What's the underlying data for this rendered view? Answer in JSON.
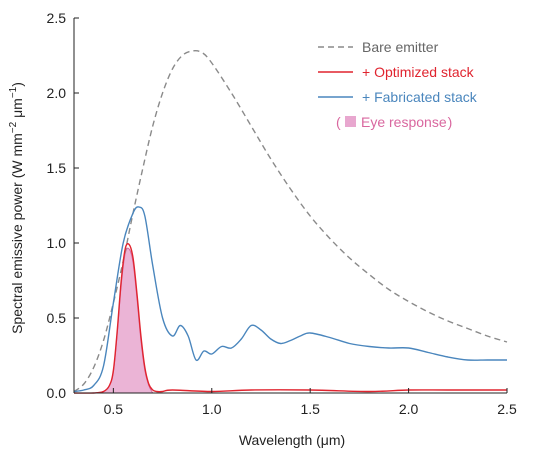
{
  "chart_data": {
    "type": "line",
    "xlabel": "Wavelength (μm)",
    "ylabel_parts": [
      "Spectral emissive power (W mm",
      "−2",
      " μm",
      "−1",
      ")"
    ],
    "xlim": [
      0.3,
      2.5
    ],
    "ylim": [
      0.0,
      2.5
    ],
    "x_ticks": [
      0.5,
      1.0,
      1.5,
      2.0,
      2.5
    ],
    "y_ticks": [
      0.0,
      0.5,
      1.0,
      1.5,
      2.0,
      2.5
    ],
    "x_tick_labels": [
      "0.5",
      "1.0",
      "1.5",
      "2.0",
      "2.5"
    ],
    "y_tick_labels": [
      "0.0",
      "0.5",
      "1.0",
      "1.5",
      "2.0",
      "2.5"
    ],
    "grid": false,
    "legend_position": "top-right",
    "series": [
      {
        "name": "Bare emitter",
        "style": "dashed",
        "color": "#8a8a8a",
        "x": [
          0.3,
          0.35,
          0.4,
          0.45,
          0.5,
          0.55,
          0.6,
          0.65,
          0.7,
          0.75,
          0.8,
          0.85,
          0.9,
          0.95,
          1.0,
          1.1,
          1.2,
          1.3,
          1.4,
          1.5,
          1.6,
          1.7,
          1.8,
          1.9,
          2.0,
          2.1,
          2.2,
          2.3,
          2.4,
          2.5
        ],
        "y": [
          0.01,
          0.06,
          0.17,
          0.35,
          0.6,
          0.88,
          1.2,
          1.5,
          1.78,
          2.0,
          2.16,
          2.25,
          2.28,
          2.27,
          2.2,
          2.0,
          1.78,
          1.56,
          1.36,
          1.18,
          1.03,
          0.9,
          0.79,
          0.69,
          0.61,
          0.54,
          0.48,
          0.43,
          0.38,
          0.34
        ]
      },
      {
        "name": "+ Optimized stack",
        "style": "solid",
        "color": "#e0242f",
        "x": [
          0.3,
          0.4,
          0.45,
          0.48,
          0.5,
          0.52,
          0.54,
          0.56,
          0.58,
          0.6,
          0.62,
          0.64,
          0.66,
          0.68,
          0.7,
          0.72,
          0.75,
          0.8,
          1.0,
          1.2,
          1.5,
          1.8,
          2.0,
          2.2,
          2.5
        ],
        "y": [
          0.0,
          0.0,
          0.01,
          0.05,
          0.15,
          0.42,
          0.75,
          0.96,
          0.99,
          0.9,
          0.66,
          0.38,
          0.17,
          0.06,
          0.02,
          0.01,
          0.01,
          0.02,
          0.01,
          0.02,
          0.02,
          0.01,
          0.02,
          0.02,
          0.02
        ]
      },
      {
        "name": "+ Fabricated stack",
        "style": "solid",
        "color": "#4a86bd",
        "x": [
          0.3,
          0.35,
          0.4,
          0.45,
          0.5,
          0.55,
          0.6,
          0.63,
          0.66,
          0.7,
          0.75,
          0.8,
          0.84,
          0.88,
          0.92,
          0.96,
          1.0,
          1.05,
          1.1,
          1.15,
          1.2,
          1.25,
          1.3,
          1.35,
          1.4,
          1.45,
          1.5,
          1.6,
          1.7,
          1.8,
          1.9,
          2.0,
          2.1,
          2.2,
          2.3,
          2.4,
          2.5
        ],
        "y": [
          0.01,
          0.02,
          0.05,
          0.18,
          0.6,
          1.0,
          1.2,
          1.24,
          1.18,
          0.85,
          0.5,
          0.38,
          0.45,
          0.38,
          0.22,
          0.28,
          0.26,
          0.31,
          0.3,
          0.36,
          0.45,
          0.42,
          0.36,
          0.33,
          0.35,
          0.38,
          0.4,
          0.37,
          0.33,
          0.31,
          0.3,
          0.3,
          0.27,
          0.24,
          0.22,
          0.22,
          0.22
        ]
      },
      {
        "name": "Eye response",
        "style": "filled",
        "color": "#e8a7cf",
        "edge_color": "#d9679f",
        "x": [
          0.4,
          0.45,
          0.48,
          0.5,
          0.52,
          0.54,
          0.56,
          0.58,
          0.6,
          0.62,
          0.64,
          0.66,
          0.68,
          0.7
        ],
        "y": [
          0.0,
          0.01,
          0.05,
          0.14,
          0.4,
          0.72,
          0.93,
          0.96,
          0.87,
          0.63,
          0.35,
          0.15,
          0.05,
          0.0
        ]
      }
    ],
    "legend": [
      {
        "label": "Bare emitter",
        "style": "dashed",
        "color": "#8a8a8a"
      },
      {
        "label": "+ Optimized stack",
        "style": "solid",
        "color": "#e0242f"
      },
      {
        "label": "+ Fabricated stack",
        "style": "solid",
        "color": "#4a86bd"
      },
      {
        "label": "Eye response",
        "prefix": "(",
        "suffix": ")",
        "style": "box",
        "color": "#e8a7cf",
        "text_color": "#d9679f"
      }
    ]
  }
}
